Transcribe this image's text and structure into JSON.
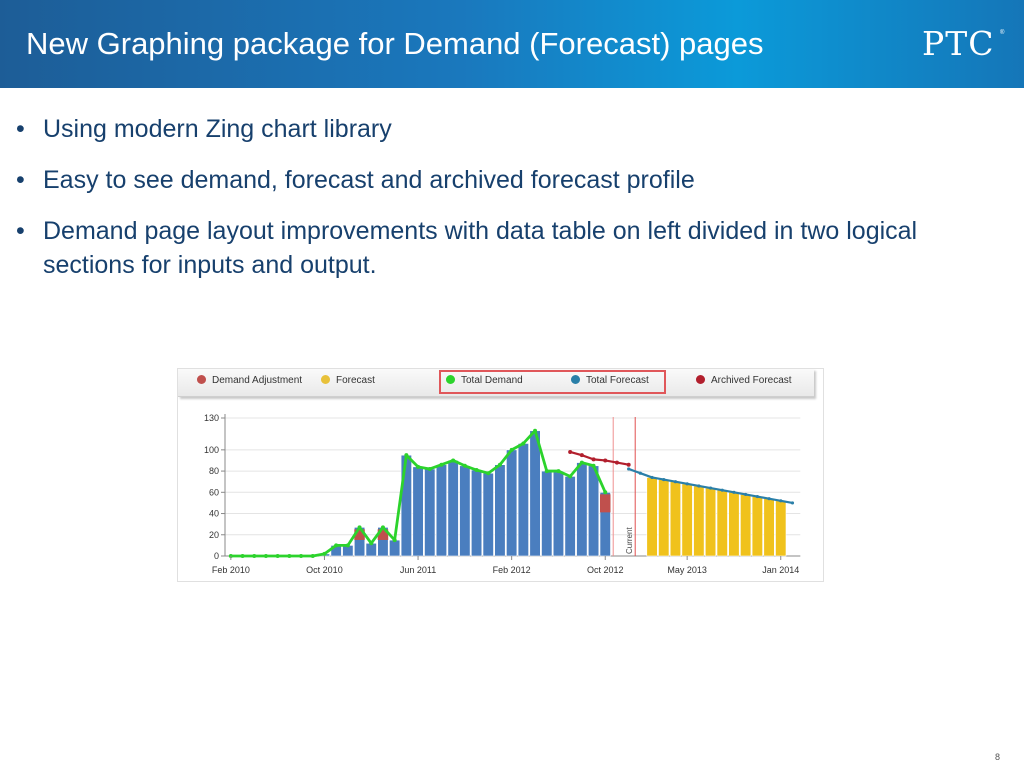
{
  "header": {
    "title": "New Graphing package for Demand (Forecast) pages",
    "logo": "PTC",
    "logo_mark": "®"
  },
  "bullets": [
    "Using modern Zing chart library",
    "Easy to see demand, forecast and archived forecast profile",
    "Demand page layout improvements with data table on left divided in two logical sections for inputs and output."
  ],
  "page_number": "8",
  "chart_data": {
    "type": "bar",
    "legend": [
      {
        "label": "Demand Adjustment",
        "color": "#c0504d"
      },
      {
        "label": "Forecast",
        "color": "#e8c13a"
      },
      {
        "label": "Total Demand",
        "color": "#2cd32c"
      },
      {
        "label": "Total Forecast",
        "color": "#2a7fa8"
      },
      {
        "label": "Archived Forecast",
        "color": "#b21f2d"
      }
    ],
    "legend_highlight": [
      "Total Demand",
      "Total Forecast"
    ],
    "y_ticks": [
      0,
      20,
      40,
      60,
      80,
      100,
      130
    ],
    "ylim": [
      0,
      130
    ],
    "x_tick_labels": [
      {
        "index": 0,
        "label": "Feb 2010"
      },
      {
        "index": 8,
        "label": "Oct 2010"
      },
      {
        "index": 16,
        "label": "Jun 2011"
      },
      {
        "index": 24,
        "label": "Feb 2012"
      },
      {
        "index": 32,
        "label": "Oct 2012"
      },
      {
        "index": 39,
        "label": "May 2013"
      },
      {
        "index": 47,
        "label": "Jan 2014"
      }
    ],
    "current_marker": {
      "index": 36,
      "label": "Current"
    },
    "series": [
      {
        "name": "Total Demand",
        "color": "#2cd32c",
        "values": [
          0,
          0,
          0,
          0,
          0,
          0,
          0,
          0,
          2,
          10,
          10,
          27,
          12,
          27,
          15,
          95,
          84,
          82,
          86,
          90,
          85,
          81,
          78,
          86,
          100,
          106,
          118,
          80,
          80,
          75,
          88,
          85,
          60
        ]
      },
      {
        "name": "Demand Adjustment",
        "color": "#c0504d",
        "values": [
          0,
          0,
          0,
          0,
          0,
          0,
          0,
          0,
          0,
          0,
          0,
          10,
          0,
          10,
          0,
          0,
          0,
          0,
          0,
          0,
          0,
          0,
          0,
          0,
          0,
          0,
          0,
          0,
          0,
          0,
          0,
          0,
          17
        ]
      },
      {
        "name": "Forecast",
        "color": "#e8c13a",
        "start_index": 36,
        "values": [
          74,
          72,
          70,
          68,
          66,
          64,
          62,
          60,
          58,
          56,
          54,
          52
        ]
      },
      {
        "name": "Total Forecast",
        "color": "#2a7fa8",
        "start_index": 34,
        "values": [
          82,
          78,
          74,
          72,
          70,
          68,
          66,
          64,
          62,
          60,
          58,
          56,
          54,
          52,
          50
        ]
      },
      {
        "name": "Archived Forecast",
        "color": "#b21f2d",
        "start_index": 29,
        "values": [
          98,
          95,
          91,
          90,
          88,
          86
        ]
      }
    ]
  }
}
